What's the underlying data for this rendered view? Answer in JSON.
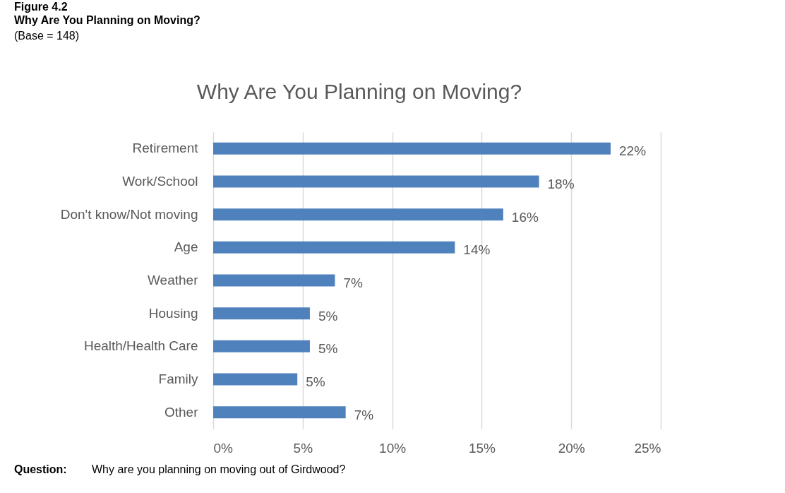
{
  "chart_data": {
    "type": "bar",
    "orientation": "horizontal",
    "title": "Why Are You Planning on Moving?",
    "annotations": [
      "Figure 4.2",
      "Why Are You Planning on Moving?",
      "(Base = 148)",
      "Question:",
      "Why are you planning on moving out of Girdwood?"
    ],
    "categories": [
      "Retirement",
      "Work/School",
      "Don't know/Not moving",
      "Age",
      "Weather",
      "Housing",
      "Health/Health Care",
      "Family",
      "Other"
    ],
    "values": [
      22.2,
      18.2,
      16.2,
      13.5,
      6.8,
      5.4,
      5.4,
      4.7,
      7.4
    ],
    "value_labels": [
      "22%",
      "18%",
      "16%",
      "14%",
      "7%",
      "5%",
      "5%",
      "5%",
      "7%"
    ],
    "color": "#4f81bd",
    "xlim": [
      0,
      25
    ],
    "xticks": [
      {
        "value": 0,
        "label": "0%"
      },
      {
        "value": 5,
        "label": "5%"
      },
      {
        "value": 10,
        "label": "10%"
      },
      {
        "value": 15,
        "label": "15%"
      },
      {
        "value": 20,
        "label": "20%"
      },
      {
        "value": 25,
        "label": "25%"
      }
    ],
    "grid": "x"
  }
}
